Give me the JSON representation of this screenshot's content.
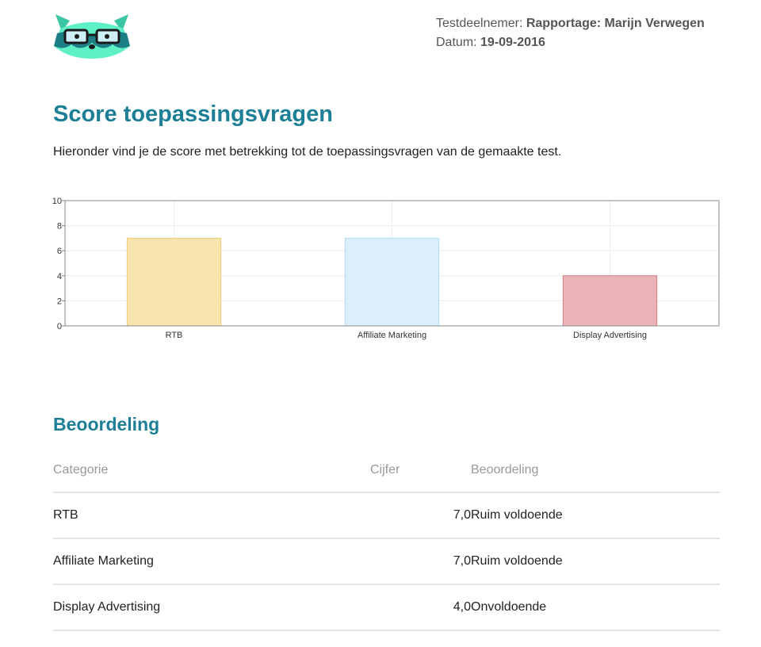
{
  "header": {
    "participant_label": "Testdeelnemer:",
    "participant_value": "Rapportage: Marijn Verwegen",
    "date_label": "Datum:",
    "date_value": "19-09-2016"
  },
  "page": {
    "title": "Score toepassingsvragen",
    "intro": "Hieronder vind je de score met betrekking tot de toepassingsvragen van de gemaakte test."
  },
  "chart_data": {
    "type": "bar",
    "categories": [
      "RTB",
      "Affiliate Marketing",
      "Display Advertising"
    ],
    "values": [
      7,
      7,
      4
    ],
    "ylim": [
      0,
      10
    ],
    "yticks": [
      "0",
      "2",
      "4",
      "6",
      "8",
      "10"
    ],
    "grid": true,
    "colors": {
      "fill": [
        "#f7e3ad",
        "#dbeefb",
        "#eab4b6"
      ],
      "stroke": [
        "#eecc70",
        "#b3dbf6",
        "#d47b82"
      ]
    }
  },
  "section": {
    "title": "Beoordeling",
    "columns": [
      "Categorie",
      "Cijfer",
      "Beoordeling"
    ],
    "rows": [
      [
        "RTB",
        "7,0",
        "Ruim voldoende"
      ],
      [
        "Affiliate Marketing",
        "7,0",
        "Ruim voldoende"
      ],
      [
        "Display Advertising",
        "4,0",
        "Onvoldoende"
      ]
    ]
  }
}
